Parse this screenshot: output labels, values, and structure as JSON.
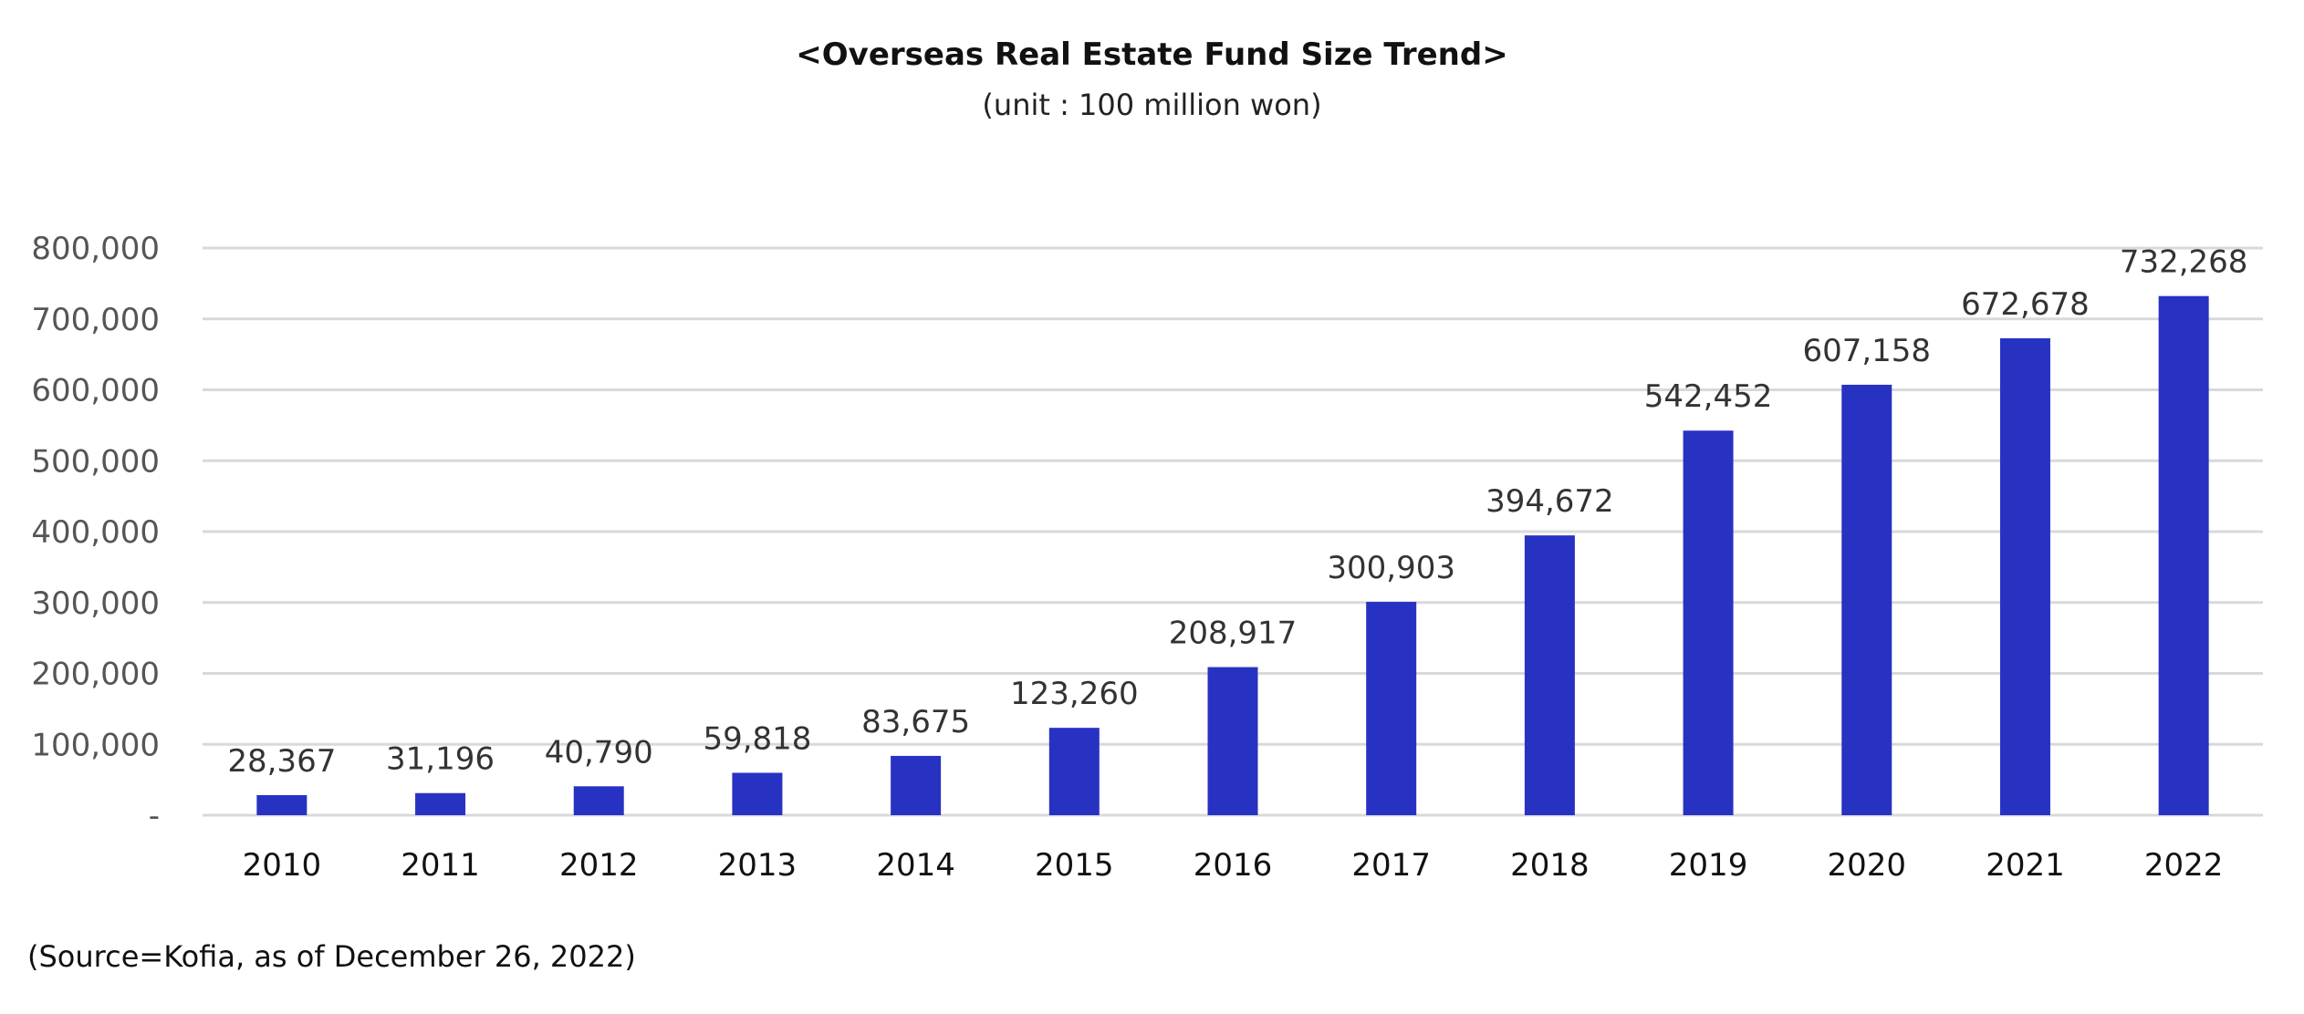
{
  "chart_data": {
    "type": "bar",
    "title": "<Overseas Real Estate Fund Size Trend>",
    "subtitle": "(unit : 100 million won)",
    "source": "(Source=Kofia, as of December 26, 2022)",
    "categories": [
      "2010",
      "2011",
      "2012",
      "2013",
      "2014",
      "2015",
      "2016",
      "2017",
      "2018",
      "2019",
      "2020",
      "2021",
      "2022"
    ],
    "values": [
      28367,
      31196,
      40790,
      59818,
      83675,
      123260,
      208917,
      300903,
      394672,
      542452,
      607158,
      672678,
      732268
    ],
    "data_labels": [
      "28,367",
      "31,196",
      "40,790",
      "59,818",
      "83,675",
      "123,260",
      "208,917",
      "300,903",
      "394,672",
      "542,452",
      "607,158",
      "672,678",
      "732,268"
    ],
    "ylim": [
      0,
      800000
    ],
    "yticks": [
      0,
      100000,
      200000,
      300000,
      400000,
      500000,
      600000,
      700000,
      800000
    ],
    "ytick_labels": [
      "-",
      "100,000",
      "200,000",
      "300,000",
      "400,000",
      "500,000",
      "600,000",
      "700,000",
      "800,000"
    ],
    "xlabel": "",
    "ylabel": "",
    "grid": true,
    "legend": "none",
    "bar_color": "#2832c2",
    "grid_color": "#d9d9d9"
  }
}
